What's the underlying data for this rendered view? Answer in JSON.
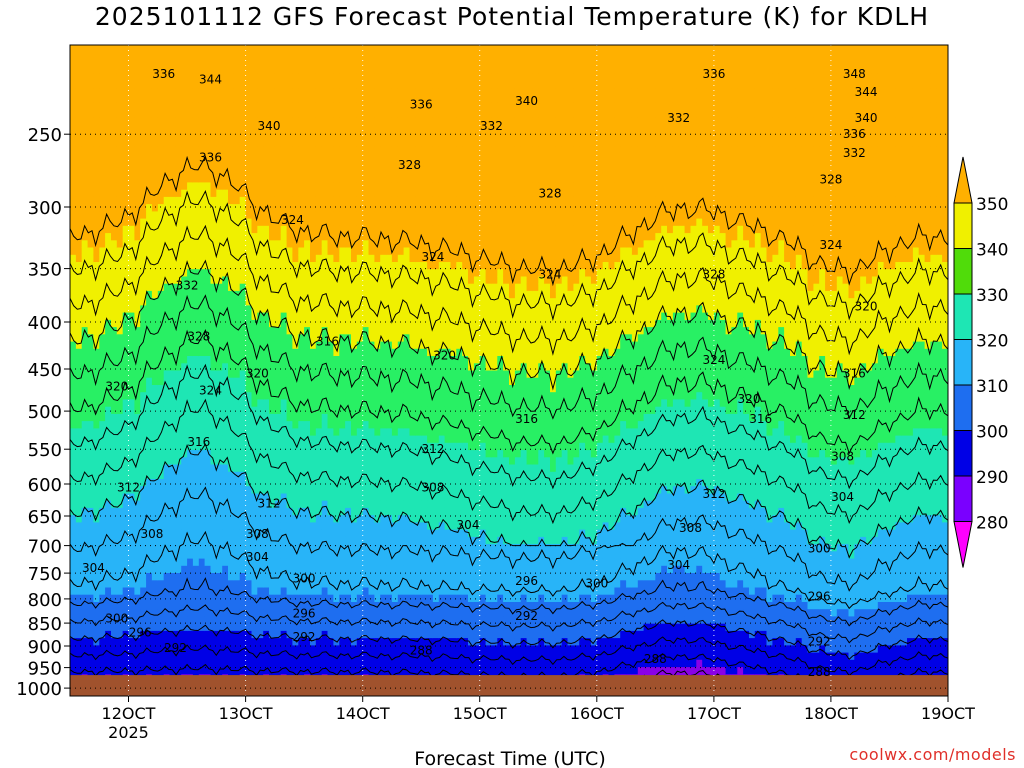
{
  "header": {
    "title": "2025101112 GFS Forecast Potential Temperature (K) for KDLH",
    "credit": "coolwx.com/models"
  },
  "chart_data": {
    "type": "heatmap",
    "title": "2025101112 GFS Forecast Potential Temperature (K) for KDLH",
    "xlabel": "Forecast Time (UTC)",
    "ylabel": "",
    "x_ticks": [
      {
        "label": "12OCT",
        "sub": "2025",
        "day": 12
      },
      {
        "label": "13OCT",
        "sub": "",
        "day": 13
      },
      {
        "label": "14OCT",
        "sub": "",
        "day": 14
      },
      {
        "label": "15OCT",
        "sub": "",
        "day": 15
      },
      {
        "label": "16OCT",
        "sub": "",
        "day": 16
      },
      {
        "label": "17OCT",
        "sub": "",
        "day": 17
      },
      {
        "label": "18OCT",
        "sub": "",
        "day": 18
      },
      {
        "label": "19OCT",
        "sub": "",
        "day": 19
      }
    ],
    "xlim": [
      11.5,
      19.0
    ],
    "y_ticks": [
      250,
      300,
      350,
      400,
      450,
      500,
      550,
      600,
      650,
      700,
      750,
      800,
      850,
      900,
      950,
      1000
    ],
    "ylim": [
      200,
      1020
    ],
    "y_scale": "log",
    "y_reversed": true,
    "grid": "dotted",
    "surface_pressure_hPa": 968,
    "colorbar": {
      "levels": [
        280,
        290,
        300,
        310,
        320,
        330,
        340,
        350
      ],
      "colors": [
        "#ff00ff",
        "#8a00e6",
        "#6a00ff",
        "#0000e6",
        "#1a73f0",
        "#28b4f8",
        "#1ee6b4",
        "#28f064",
        "#50dc0a",
        "#f0f000",
        "#ffb000"
      ],
      "extend": "both"
    },
    "contour_labels": [
      {
        "x": 12.3,
        "p": 215,
        "v": "336"
      },
      {
        "x": 12.7,
        "p": 218,
        "v": "344"
      },
      {
        "x": 12.7,
        "p": 265,
        "v": "336"
      },
      {
        "x": 12.5,
        "p": 365,
        "v": "332"
      },
      {
        "x": 12.6,
        "p": 415,
        "v": "328"
      },
      {
        "x": 12.7,
        "p": 475,
        "v": "324"
      },
      {
        "x": 11.9,
        "p": 470,
        "v": "320"
      },
      {
        "x": 12.6,
        "p": 540,
        "v": "316"
      },
      {
        "x": 12.0,
        "p": 605,
        "v": "312"
      },
      {
        "x": 12.2,
        "p": 680,
        "v": "308"
      },
      {
        "x": 11.7,
        "p": 740,
        "v": "304"
      },
      {
        "x": 11.9,
        "p": 840,
        "v": "300"
      },
      {
        "x": 12.1,
        "p": 870,
        "v": "296"
      },
      {
        "x": 12.4,
        "p": 905,
        "v": "292"
      },
      {
        "x": 13.2,
        "p": 245,
        "v": "340"
      },
      {
        "x": 13.4,
        "p": 310,
        "v": "324"
      },
      {
        "x": 13.7,
        "p": 420,
        "v": "316"
      },
      {
        "x": 13.1,
        "p": 455,
        "v": "320"
      },
      {
        "x": 13.2,
        "p": 630,
        "v": "312"
      },
      {
        "x": 13.1,
        "p": 680,
        "v": "308"
      },
      {
        "x": 13.1,
        "p": 720,
        "v": "304"
      },
      {
        "x": 13.5,
        "p": 760,
        "v": "300"
      },
      {
        "x": 13.5,
        "p": 830,
        "v": "296"
      },
      {
        "x": 13.5,
        "p": 880,
        "v": "292"
      },
      {
        "x": 14.5,
        "p": 232,
        "v": "336"
      },
      {
        "x": 14.4,
        "p": 270,
        "v": "328"
      },
      {
        "x": 15.1,
        "p": 245,
        "v": "332"
      },
      {
        "x": 15.4,
        "p": 230,
        "v": "340"
      },
      {
        "x": 14.6,
        "p": 340,
        "v": "324"
      },
      {
        "x": 14.7,
        "p": 435,
        "v": "320"
      },
      {
        "x": 14.6,
        "p": 550,
        "v": "312"
      },
      {
        "x": 14.6,
        "p": 605,
        "v": "308"
      },
      {
        "x": 14.9,
        "p": 665,
        "v": "304"
      },
      {
        "x": 14.5,
        "p": 910,
        "v": "288"
      },
      {
        "x": 15.6,
        "p": 290,
        "v": "328"
      },
      {
        "x": 15.6,
        "p": 355,
        "v": "324"
      },
      {
        "x": 15.4,
        "p": 510,
        "v": "316"
      },
      {
        "x": 15.4,
        "p": 765,
        "v": "296"
      },
      {
        "x": 15.4,
        "p": 835,
        "v": "292"
      },
      {
        "x": 16.0,
        "p": 770,
        "v": "300"
      },
      {
        "x": 17.0,
        "p": 215,
        "v": "336"
      },
      {
        "x": 16.7,
        "p": 240,
        "v": "332"
      },
      {
        "x": 17.0,
        "p": 355,
        "v": "328"
      },
      {
        "x": 17.0,
        "p": 440,
        "v": "324"
      },
      {
        "x": 17.3,
        "p": 485,
        "v": "320"
      },
      {
        "x": 17.4,
        "p": 510,
        "v": "316"
      },
      {
        "x": 17.0,
        "p": 615,
        "v": "312"
      },
      {
        "x": 16.8,
        "p": 670,
        "v": "308"
      },
      {
        "x": 16.7,
        "p": 735,
        "v": "304"
      },
      {
        "x": 16.5,
        "p": 930,
        "v": "288"
      },
      {
        "x": 18.2,
        "p": 215,
        "v": "348"
      },
      {
        "x": 18.3,
        "p": 225,
        "v": "344"
      },
      {
        "x": 18.3,
        "p": 240,
        "v": "340"
      },
      {
        "x": 18.2,
        "p": 250,
        "v": "336"
      },
      {
        "x": 18.2,
        "p": 262,
        "v": "332"
      },
      {
        "x": 18.0,
        "p": 280,
        "v": "328"
      },
      {
        "x": 18.0,
        "p": 330,
        "v": "324"
      },
      {
        "x": 18.3,
        "p": 385,
        "v": "320"
      },
      {
        "x": 18.2,
        "p": 455,
        "v": "316"
      },
      {
        "x": 18.2,
        "p": 505,
        "v": "312"
      },
      {
        "x": 18.1,
        "p": 560,
        "v": "308"
      },
      {
        "x": 18.1,
        "p": 620,
        "v": "304"
      },
      {
        "x": 17.9,
        "p": 705,
        "v": "300"
      },
      {
        "x": 17.9,
        "p": 795,
        "v": "296"
      },
      {
        "x": 17.9,
        "p": 890,
        "v": "292"
      },
      {
        "x": 17.9,
        "p": 960,
        "v": "288"
      }
    ]
  }
}
